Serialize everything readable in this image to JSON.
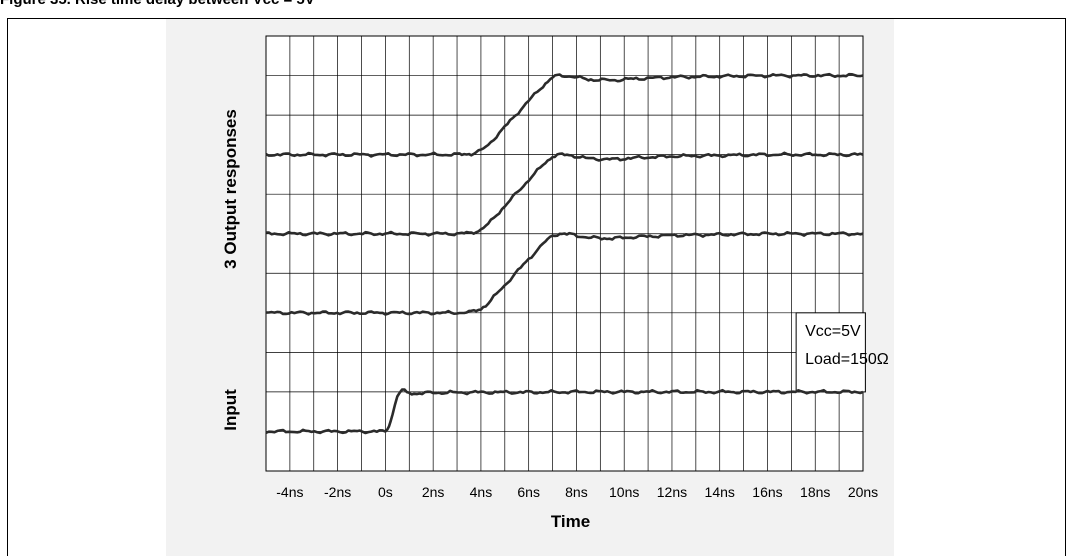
{
  "figure": {
    "title": "Figure 35.   Rise time delay between Vcc = 5V"
  },
  "chart_data": {
    "type": "line",
    "title": "",
    "xlabel": "Time",
    "ylabel_top": "3 Output responses",
    "ylabel_bottom": "Input",
    "xlim": [
      -5,
      20
    ],
    "x_ticks": [
      -4,
      -2,
      0,
      2,
      4,
      6,
      8,
      10,
      12,
      14,
      16,
      18,
      20
    ],
    "x_tick_labels": [
      "-4ns",
      "-2ns",
      "0s",
      "2ns",
      "4ns",
      "6ns",
      "8ns",
      "10ns",
      "12ns",
      "14ns",
      "16ns",
      "18ns",
      "20ns"
    ],
    "grid": true,
    "annotation": [
      "Vcc=5V",
      "Load=150Ω"
    ],
    "annotation_placement": "right",
    "series": [
      {
        "role": "input",
        "x": [
          -5,
          0,
          0.15,
          0.3,
          0.5,
          0.7,
          0.9,
          1.2,
          2,
          4,
          6,
          8,
          10,
          12,
          14,
          16,
          18,
          20
        ],
        "y": [
          0,
          0,
          0.15,
          0.45,
          0.9,
          1.05,
          0.98,
          0.96,
          0.98,
          0.99,
          0.99,
          1.0,
          1.0,
          1.0,
          1.0,
          1.0,
          1.0,
          1.0
        ]
      },
      {
        "role": "output",
        "x": [
          -5,
          0,
          3,
          3.6,
          4,
          4.3,
          5,
          6,
          6.6,
          7,
          7.3,
          7.8,
          8.5,
          9.5,
          10.5,
          12,
          14,
          16,
          18,
          20
        ],
        "y": [
          0,
          0,
          0,
          0.01,
          0.05,
          0.12,
          0.35,
          0.68,
          0.87,
          0.98,
          1.0,
          0.99,
          0.95,
          0.94,
          0.96,
          0.98,
          0.99,
          1.0,
          1.0,
          1.0
        ]
      },
      {
        "role": "output",
        "x": [
          -5,
          0,
          3,
          3.6,
          4,
          4.3,
          5,
          6,
          6.6,
          7,
          7.3,
          7.8,
          8.5,
          9.5,
          10.5,
          12,
          14,
          16,
          18,
          20
        ],
        "y": [
          0,
          0,
          0,
          0.01,
          0.05,
          0.12,
          0.35,
          0.68,
          0.87,
          0.98,
          1.0,
          0.99,
          0.95,
          0.94,
          0.96,
          0.98,
          0.99,
          1.0,
          1.0,
          1.0
        ]
      },
      {
        "role": "output",
        "x": [
          -5,
          0,
          3,
          3.6,
          4,
          4.3,
          5,
          6,
          6.6,
          7,
          7.3,
          7.8,
          8.5,
          9.5,
          10.5,
          12,
          14,
          16,
          18,
          20
        ],
        "y": [
          0,
          0,
          0,
          0.01,
          0.05,
          0.12,
          0.35,
          0.68,
          0.87,
          0.98,
          1.0,
          0.99,
          0.95,
          0.94,
          0.96,
          0.98,
          0.99,
          1.0,
          1.0,
          1.0
        ]
      }
    ]
  }
}
